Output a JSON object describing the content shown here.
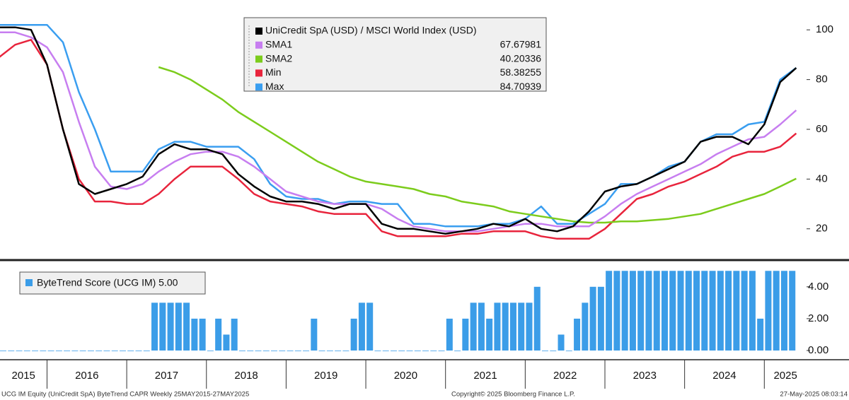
{
  "chart_data": [
    {
      "type": "line",
      "xlim": [
        2015.41,
        2025.53
      ],
      "ylim": [
        8,
        112
      ],
      "yticks": [
        20,
        40,
        60,
        80,
        100
      ],
      "x": [
        2015.4,
        2015.6,
        2015.8,
        2016.0,
        2016.2,
        2016.4,
        2016.6,
        2016.8,
        2017.0,
        2017.2,
        2017.4,
        2017.6,
        2017.8,
        2018.0,
        2018.2,
        2018.4,
        2018.6,
        2018.8,
        2019.0,
        2019.2,
        2019.4,
        2019.6,
        2019.8,
        2020.0,
        2020.2,
        2020.4,
        2020.6,
        2020.8,
        2021.0,
        2021.2,
        2021.4,
        2021.6,
        2021.8,
        2022.0,
        2022.2,
        2022.4,
        2022.6,
        2022.8,
        2023.0,
        2023.2,
        2023.4,
        2023.6,
        2023.8,
        2024.0,
        2024.2,
        2024.4,
        2024.6,
        2024.8,
        2025.0,
        2025.2,
        2025.4
      ],
      "series": [
        {
          "name": "UniCredit SpA (USD) / MSCI World Index (USD)",
          "color": "#000000",
          "values": [
            101,
            101,
            100,
            86,
            60,
            38,
            34,
            36,
            38,
            41,
            50,
            54,
            52,
            52,
            50,
            42,
            37,
            33,
            31,
            31,
            30,
            28,
            30,
            30,
            22,
            20,
            20,
            19,
            18,
            19,
            20,
            22,
            21,
            24,
            20,
            19,
            21,
            27,
            35,
            37,
            38,
            41,
            44,
            47,
            55,
            57,
            57,
            54,
            62,
            79,
            84.7
          ]
        },
        {
          "name": "SMA1",
          "color": "#c77ef0",
          "last_value": 67.67981,
          "values": [
            99,
            99,
            97,
            93,
            83,
            63,
            45,
            37,
            36,
            38,
            43,
            47,
            50,
            51,
            51,
            49,
            45,
            40,
            35,
            33,
            31,
            30,
            30,
            30,
            28,
            24,
            21,
            20,
            19,
            19,
            19,
            20,
            21,
            22,
            22,
            21,
            21,
            21,
            25,
            30,
            34,
            37,
            40,
            43,
            46,
            50,
            53,
            56,
            57,
            62,
            67.67981
          ]
        },
        {
          "name": "SMA2",
          "color": "#7ccc1c",
          "last_value": 40.20336,
          "values": [
            null,
            null,
            null,
            null,
            null,
            null,
            null,
            null,
            null,
            null,
            85,
            83,
            80,
            76,
            72,
            67,
            63,
            59,
            55,
            51,
            47,
            44,
            41,
            39,
            38,
            37,
            36,
            34,
            33,
            31,
            30,
            29,
            27,
            26,
            25,
            24,
            23,
            22.5,
            22.5,
            23,
            23,
            23.5,
            24,
            25,
            26,
            28,
            30,
            32,
            34,
            37,
            40.20336
          ]
        },
        {
          "name": "Min",
          "color": "#e8243c",
          "last_value": 58.38255,
          "values": [
            89,
            94,
            96,
            86,
            60,
            40,
            31,
            31,
            30,
            30,
            34,
            40,
            45,
            45,
            45,
            40,
            34,
            31,
            30,
            29,
            27,
            26,
            26,
            26,
            19,
            17,
            17,
            17,
            17,
            18,
            18,
            19,
            19,
            19,
            17,
            16,
            16,
            16,
            20,
            26,
            32,
            34,
            37,
            39,
            42,
            45,
            49,
            51,
            51,
            53,
            58.38255
          ]
        },
        {
          "name": "Max",
          "color": "#3a9ef0",
          "last_value": 84.70939,
          "values": [
            102,
            102,
            102,
            102,
            95,
            75,
            60,
            43,
            43,
            43,
            52,
            55,
            55,
            53,
            53,
            53,
            48,
            38,
            33,
            32,
            32,
            30,
            31,
            31,
            30,
            30,
            22,
            22,
            21,
            21,
            21,
            22,
            22,
            24,
            29,
            22,
            22,
            26,
            30,
            38,
            38,
            41,
            45,
            47,
            55,
            58,
            58,
            62,
            63,
            80,
            84.70939
          ]
        }
      ]
    },
    {
      "type": "bar",
      "xlim": [
        2015.41,
        2025.53
      ],
      "ylim": [
        -0.4,
        5.5
      ],
      "yticks": [
        {
          "value": 0,
          "label": "0.00"
        },
        {
          "value": 2,
          "label": "2.00"
        },
        {
          "value": 4,
          "label": "4.00"
        }
      ],
      "xticks": [
        {
          "value": 2015,
          "label": "2015"
        },
        {
          "value": 2016,
          "label": "2016"
        },
        {
          "value": 2017,
          "label": "2017"
        },
        {
          "value": 2018,
          "label": "2018"
        },
        {
          "value": 2019,
          "label": "2019"
        },
        {
          "value": 2020,
          "label": "2020"
        },
        {
          "value": 2021,
          "label": "2021"
        },
        {
          "value": 2022,
          "label": "2022"
        },
        {
          "value": 2023,
          "label": "2023"
        },
        {
          "value": 2024,
          "label": "2024"
        },
        {
          "value": 2025,
          "label": "2025"
        }
      ],
      "x": [
        2015.45,
        2015.55,
        2015.65,
        2015.75,
        2015.85,
        2015.95,
        2016.05,
        2016.15,
        2016.25,
        2016.35,
        2016.45,
        2016.55,
        2016.65,
        2016.75,
        2016.85,
        2016.95,
        2017.05,
        2017.15,
        2017.25,
        2017.35,
        2017.45,
        2017.55,
        2017.65,
        2017.75,
        2017.85,
        2017.95,
        2018.05,
        2018.15,
        2018.25,
        2018.35,
        2018.45,
        2018.55,
        2018.65,
        2018.75,
        2018.85,
        2018.95,
        2019.05,
        2019.15,
        2019.25,
        2019.35,
        2019.45,
        2019.55,
        2019.65,
        2019.75,
        2019.85,
        2019.95,
        2020.05,
        2020.15,
        2020.25,
        2020.35,
        2020.45,
        2020.55,
        2020.65,
        2020.75,
        2020.85,
        2020.95,
        2021.05,
        2021.15,
        2021.25,
        2021.35,
        2021.45,
        2021.55,
        2021.65,
        2021.75,
        2021.85,
        2021.95,
        2022.05,
        2022.15,
        2022.25,
        2022.35,
        2022.45,
        2022.55,
        2022.65,
        2022.75,
        2022.85,
        2022.95,
        2023.05,
        2023.15,
        2023.25,
        2023.35,
        2023.45,
        2023.55,
        2023.65,
        2023.75,
        2023.85,
        2023.95,
        2024.05,
        2024.15,
        2024.25,
        2024.35,
        2024.45,
        2024.55,
        2024.65,
        2024.75,
        2024.85,
        2024.95,
        2025.05,
        2025.15,
        2025.25,
        2025.35
      ],
      "series": [
        {
          "name": "ByteTrend Score (UCG IM) 5.00",
          "color": "#3b9de8",
          "values": [
            0,
            0,
            0,
            0,
            0,
            0,
            0,
            0,
            0,
            0,
            0,
            0,
            0,
            0,
            0,
            0,
            0,
            0,
            0,
            3,
            3,
            3,
            3,
            3,
            2,
            2,
            0,
            2,
            1,
            2,
            0,
            0,
            0,
            0,
            0,
            0,
            0,
            0,
            0,
            2,
            0,
            0,
            0,
            0,
            2,
            3,
            3,
            0,
            0,
            0,
            0,
            0,
            0,
            0,
            0,
            0,
            2,
            0,
            2,
            3,
            3,
            2,
            3,
            3,
            3,
            3,
            3,
            4,
            0,
            0,
            1,
            0,
            2,
            3,
            4,
            4,
            5,
            5,
            5,
            5,
            5,
            5,
            5,
            5,
            5,
            5,
            5,
            5,
            5,
            5,
            5,
            5,
            5,
            5,
            5,
            2,
            5,
            5,
            5,
            5
          ]
        }
      ]
    }
  ],
  "footer": {
    "left": "UCG IM Equity (UniCredit SpA) ByteTrend CAPR  Weekly 25MAY2015-27MAY2025",
    "center": "Copyright© 2025 Bloomberg Finance L.P.",
    "right": "27-May-2025 08:03:14"
  }
}
